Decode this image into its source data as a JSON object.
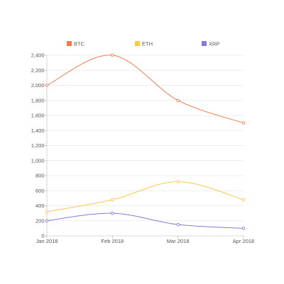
{
  "chart_data": {
    "type": "line",
    "title": "",
    "xlabel": "",
    "ylabel": "",
    "categories": [
      "Jan 2018",
      "Feb 2018",
      "Mar 2018",
      "Apr 2018"
    ],
    "ylim": [
      0,
      2400
    ],
    "yticks": [
      0,
      200,
      400,
      600,
      800,
      1000,
      1200,
      1400,
      1600,
      1800,
      2000,
      2200,
      2400
    ],
    "ytick_labels": [
      "0",
      "200",
      "400",
      "600",
      "800",
      "1,000",
      "1,200",
      "1,400",
      "1,600",
      "1,800",
      "2,000",
      "2,200",
      "2,400"
    ],
    "grid": true,
    "legend_position": "top",
    "series": [
      {
        "name": "BTC",
        "color": "#f07a4f",
        "values": [
          2000,
          2400,
          1800,
          1500
        ]
      },
      {
        "name": "ETH",
        "color": "#fbc94f",
        "values": [
          320,
          480,
          720,
          480
        ]
      },
      {
        "name": "XRP",
        "color": "#8a78d9",
        "values": [
          200,
          300,
          150,
          100
        ]
      }
    ]
  }
}
